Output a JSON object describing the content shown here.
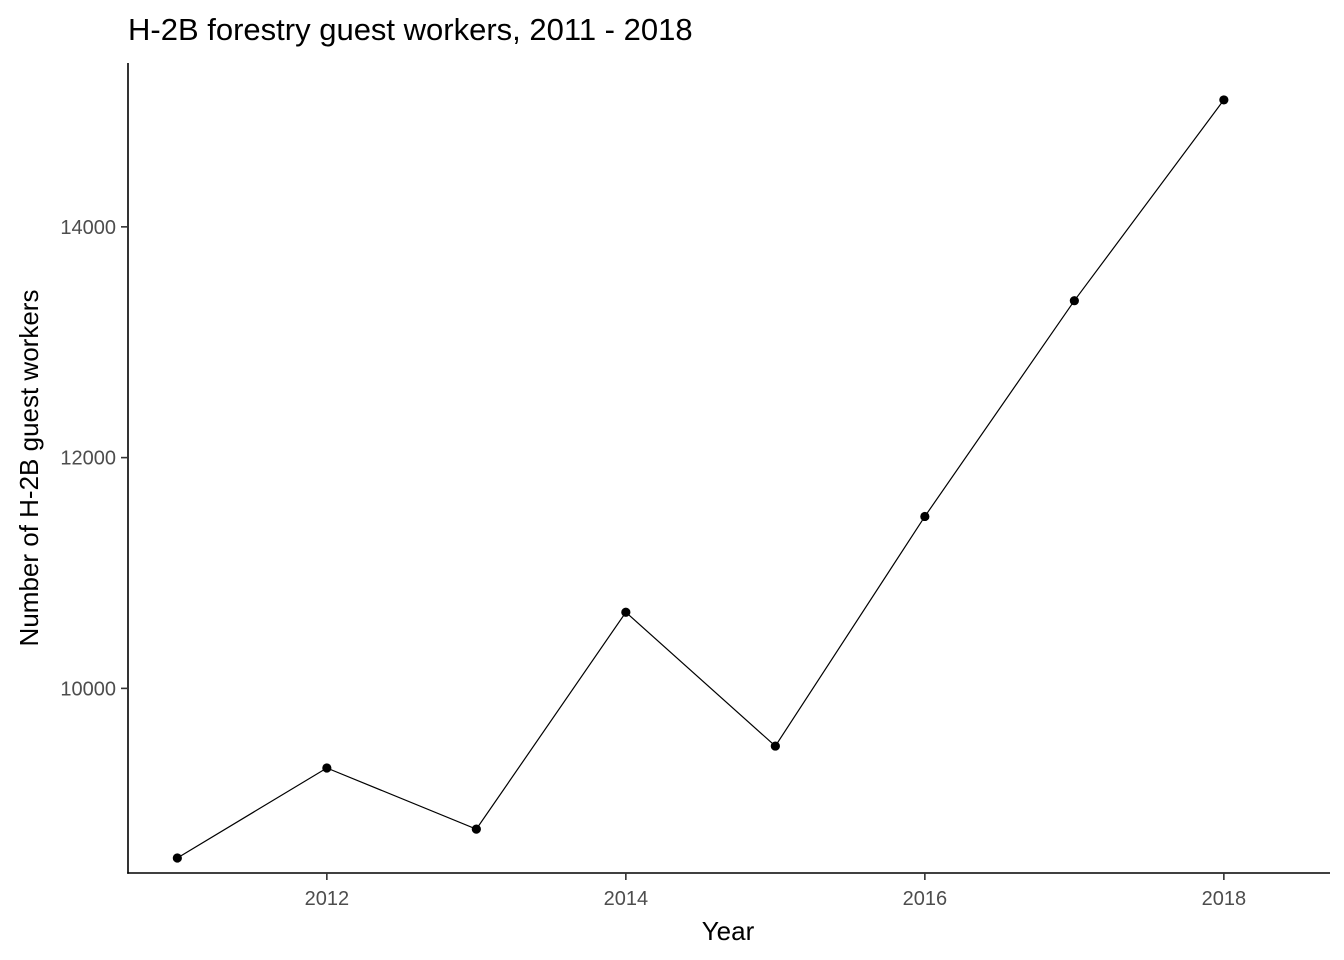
{
  "chart_data": {
    "type": "line",
    "title": "H-2B forestry guest workers, 2011 - 2018",
    "xlabel": "Year",
    "ylabel": "Number of H-2B guest workers",
    "x": [
      2011,
      2012,
      2013,
      2014,
      2015,
      2016,
      2017,
      2018
    ],
    "series": [
      {
        "values": [
          8530,
          9310,
          8780,
          10660,
          9500,
          11490,
          13360,
          15100
        ]
      }
    ],
    "xlim": [
      2010.67,
      2018.71
    ],
    "ylim": [
      8400,
      15420
    ],
    "x_ticks": [
      2012,
      2014,
      2016,
      2018
    ],
    "x_tick_labels": [
      "2012",
      "2014",
      "2016",
      "2018"
    ],
    "y_ticks": [
      10000,
      12000,
      14000
    ],
    "y_tick_labels": [
      "10000",
      "12000",
      "14000"
    ],
    "grid": false,
    "legend": "none",
    "colors": {
      "line": "#000000",
      "points": "#000000",
      "tick_text": "#4d4d4d"
    }
  }
}
